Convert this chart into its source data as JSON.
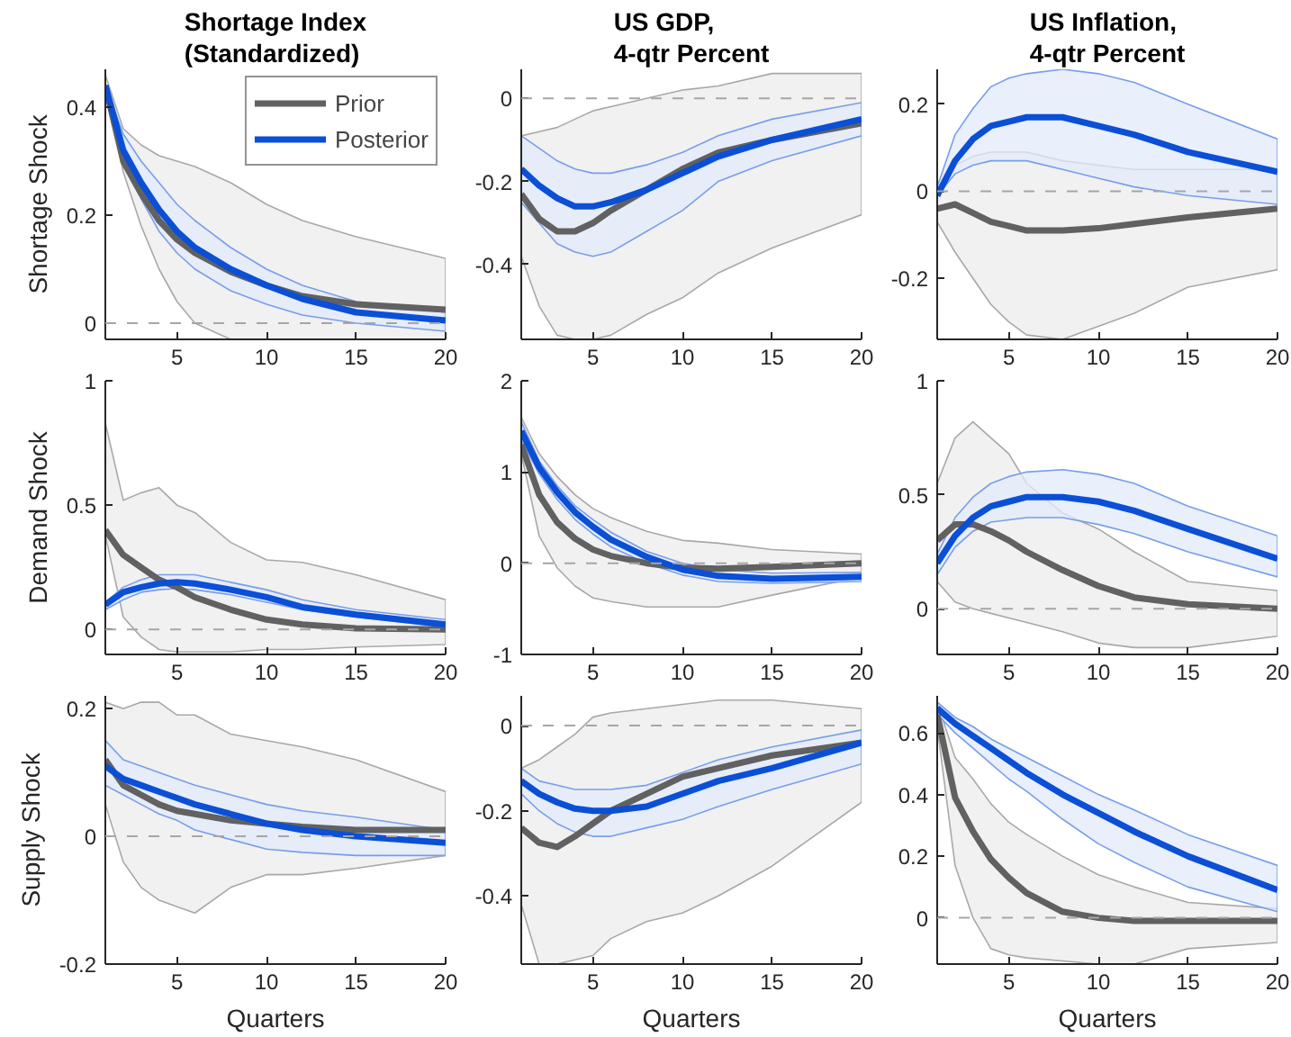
{
  "chart_data": [
    {
      "type": "line",
      "title": "Shortage Index\n(Standardized)",
      "ylabel": "Shortage Shock",
      "x": [
        1,
        2,
        3,
        4,
        5,
        6,
        8,
        10,
        12,
        15,
        20
      ],
      "xlim": [
        1,
        20
      ],
      "xticks": [
        5,
        10,
        15,
        20
      ],
      "ylim": [
        -0.03,
        0.47
      ],
      "yticks": [
        0,
        0.2,
        0.4
      ],
      "legend": "top right",
      "ref_lines": [
        {
          "axis": "y",
          "value": 0,
          "color": "#a6a6a6",
          "line_style": "dashed"
        }
      ],
      "series": [
        {
          "name": "Prior",
          "color": "#616161",
          "values": [
            0.44,
            0.3,
            0.24,
            0.19,
            0.155,
            0.13,
            0.095,
            0.07,
            0.05,
            0.035,
            0.025
          ],
          "lower": [
            0.44,
            0.28,
            0.18,
            0.1,
            0.04,
            0.0,
            -0.03,
            -0.03,
            -0.03,
            -0.03,
            -0.03
          ],
          "upper": [
            0.46,
            0.36,
            0.33,
            0.31,
            0.3,
            0.29,
            0.26,
            0.22,
            0.19,
            0.16,
            0.12
          ]
        },
        {
          "name": "Posterior",
          "color": "#0a4fd6",
          "values": [
            0.44,
            0.32,
            0.26,
            0.21,
            0.17,
            0.14,
            0.1,
            0.07,
            0.045,
            0.02,
            0.005
          ],
          "lower": [
            0.44,
            0.31,
            0.23,
            0.17,
            0.13,
            0.1,
            0.06,
            0.035,
            0.015,
            0.0,
            -0.015
          ],
          "upper": [
            0.44,
            0.35,
            0.3,
            0.26,
            0.22,
            0.19,
            0.14,
            0.1,
            0.07,
            0.04,
            0.02
          ]
        }
      ]
    },
    {
      "type": "line",
      "title": "US GDP,\n4-qtr Percent",
      "x": [
        1,
        2,
        3,
        4,
        5,
        6,
        8,
        10,
        12,
        15,
        20
      ],
      "xlim": [
        1,
        20
      ],
      "xticks": [
        5,
        10,
        15,
        20
      ],
      "ylim": [
        -0.58,
        0.07
      ],
      "yticks": [
        -0.4,
        -0.2,
        0
      ],
      "ref_lines": [
        {
          "axis": "y",
          "value": 0,
          "color": "#a6a6a6",
          "line_style": "dashed"
        }
      ],
      "series": [
        {
          "color": "#616161",
          "values": [
            -0.23,
            -0.29,
            -0.32,
            -0.32,
            -0.3,
            -0.27,
            -0.22,
            -0.17,
            -0.13,
            -0.1,
            -0.06
          ],
          "lower": [
            -0.38,
            -0.5,
            -0.57,
            -0.58,
            -0.58,
            -0.57,
            -0.52,
            -0.48,
            -0.42,
            -0.36,
            -0.28
          ],
          "upper": [
            -0.09,
            -0.08,
            -0.07,
            -0.05,
            -0.03,
            -0.02,
            0.0,
            0.02,
            0.03,
            0.06,
            0.06
          ]
        },
        {
          "color": "#0a4fd6",
          "values": [
            -0.17,
            -0.21,
            -0.24,
            -0.26,
            -0.26,
            -0.25,
            -0.22,
            -0.18,
            -0.14,
            -0.1,
            -0.05
          ],
          "lower": [
            -0.25,
            -0.3,
            -0.35,
            -0.37,
            -0.38,
            -0.37,
            -0.32,
            -0.27,
            -0.2,
            -0.15,
            -0.09
          ],
          "upper": [
            -0.09,
            -0.12,
            -0.15,
            -0.17,
            -0.18,
            -0.18,
            -0.16,
            -0.13,
            -0.09,
            -0.05,
            -0.01
          ]
        }
      ]
    },
    {
      "type": "line",
      "title": "US Inflation,\n4-qtr Percent",
      "x": [
        1,
        2,
        3,
        4,
        5,
        6,
        8,
        10,
        12,
        15,
        20
      ],
      "xlim": [
        1,
        20
      ],
      "xticks": [
        5,
        10,
        15,
        20
      ],
      "ylim": [
        -0.34,
        0.28
      ],
      "yticks": [
        -0.2,
        0,
        0.2
      ],
      "ref_lines": [
        {
          "axis": "y",
          "value": 0,
          "color": "#a6a6a6",
          "line_style": "dashed"
        }
      ],
      "series": [
        {
          "color": "#616161",
          "values": [
            -0.04,
            -0.03,
            -0.05,
            -0.07,
            -0.08,
            -0.09,
            -0.09,
            -0.085,
            -0.075,
            -0.06,
            -0.04
          ],
          "lower": [
            -0.07,
            -0.14,
            -0.2,
            -0.26,
            -0.3,
            -0.33,
            -0.34,
            -0.31,
            -0.28,
            -0.22,
            -0.18
          ],
          "upper": [
            0.0,
            0.06,
            0.08,
            0.09,
            0.09,
            0.09,
            0.07,
            0.06,
            0.05,
            0.05,
            0.05
          ]
        },
        {
          "color": "#0a4fd6",
          "values": [
            -0.01,
            0.07,
            0.12,
            0.15,
            0.16,
            0.17,
            0.17,
            0.15,
            0.13,
            0.09,
            0.045
          ],
          "lower": [
            -0.01,
            0.04,
            0.06,
            0.07,
            0.07,
            0.07,
            0.05,
            0.03,
            0.01,
            -0.01,
            -0.03
          ],
          "upper": [
            0.01,
            0.13,
            0.19,
            0.24,
            0.26,
            0.27,
            0.28,
            0.27,
            0.25,
            0.2,
            0.12
          ]
        }
      ]
    },
    {
      "type": "line",
      "ylabel": "Demand Shock",
      "x": [
        1,
        2,
        3,
        4,
        5,
        6,
        8,
        10,
        12,
        15,
        20
      ],
      "xlim": [
        1,
        20
      ],
      "xticks": [
        5,
        10,
        15,
        20
      ],
      "ylim": [
        -0.1,
        1
      ],
      "yticks": [
        0,
        0.5,
        1
      ],
      "ref_lines": [
        {
          "axis": "y",
          "value": 0,
          "color": "#a6a6a6",
          "line_style": "dashed"
        }
      ],
      "series": [
        {
          "color": "#616161",
          "values": [
            0.4,
            0.3,
            0.25,
            0.2,
            0.17,
            0.13,
            0.08,
            0.04,
            0.02,
            0.005,
            0
          ],
          "lower": [
            0.38,
            0.05,
            -0.03,
            -0.08,
            -0.09,
            -0.09,
            -0.09,
            -0.08,
            -0.08,
            -0.07,
            -0.06
          ],
          "upper": [
            0.83,
            0.52,
            0.55,
            0.57,
            0.5,
            0.47,
            0.35,
            0.28,
            0.27,
            0.22,
            0.12
          ]
        },
        {
          "color": "#0a4fd6",
          "values": [
            0.1,
            0.15,
            0.17,
            0.185,
            0.19,
            0.185,
            0.16,
            0.13,
            0.09,
            0.06,
            0.02
          ],
          "lower": [
            0.08,
            0.12,
            0.15,
            0.16,
            0.165,
            0.16,
            0.14,
            0.11,
            0.08,
            0.05,
            0.01
          ],
          "upper": [
            0.11,
            0.17,
            0.2,
            0.22,
            0.22,
            0.22,
            0.19,
            0.16,
            0.12,
            0.08,
            0.04
          ]
        }
      ]
    },
    {
      "type": "line",
      "x": [
        1,
        2,
        3,
        4,
        5,
        6,
        8,
        10,
        12,
        15,
        20
      ],
      "xlim": [
        1,
        20
      ],
      "xticks": [
        5,
        10,
        15,
        20
      ],
      "ylim": [
        -1,
        2
      ],
      "yticks": [
        -1,
        0,
        1,
        2
      ],
      "ref_lines": [
        {
          "axis": "y",
          "value": 0,
          "color": "#a6a6a6",
          "line_style": "dashed"
        }
      ],
      "series": [
        {
          "color": "#616161",
          "values": [
            1.3,
            0.75,
            0.45,
            0.27,
            0.15,
            0.08,
            0,
            -0.05,
            -0.06,
            -0.04,
            0
          ],
          "lower": [
            1.2,
            0.3,
            -0.05,
            -0.25,
            -0.38,
            -0.42,
            -0.48,
            -0.48,
            -0.48,
            -0.35,
            -0.15
          ],
          "upper": [
            1.6,
            1.2,
            0.95,
            0.75,
            0.6,
            0.5,
            0.35,
            0.25,
            0.22,
            0.15,
            0.1
          ]
        },
        {
          "color": "#0a4fd6",
          "values": [
            1.45,
            1.05,
            0.78,
            0.56,
            0.4,
            0.26,
            0.07,
            -0.07,
            -0.14,
            -0.17,
            -0.15
          ],
          "lower": [
            1.35,
            0.98,
            0.7,
            0.48,
            0.32,
            0.18,
            0,
            -0.13,
            -0.2,
            -0.22,
            -0.2
          ],
          "upper": [
            1.55,
            1.12,
            0.85,
            0.63,
            0.48,
            0.34,
            0.13,
            0,
            -0.07,
            -0.11,
            -0.1
          ]
        }
      ]
    },
    {
      "type": "line",
      "x": [
        1,
        2,
        3,
        4,
        5,
        6,
        8,
        10,
        12,
        15,
        20
      ],
      "xlim": [
        1,
        20
      ],
      "xticks": [
        5,
        10,
        15,
        20
      ],
      "ylim": [
        -0.2,
        1
      ],
      "yticks": [
        0,
        0.5,
        1
      ],
      "ref_lines": [
        {
          "axis": "y",
          "value": 0,
          "color": "#a6a6a6",
          "line_style": "dashed"
        }
      ],
      "series": [
        {
          "color": "#616161",
          "values": [
            0.3,
            0.37,
            0.37,
            0.34,
            0.3,
            0.25,
            0.17,
            0.1,
            0.05,
            0.02,
            0
          ],
          "lower": [
            0.12,
            0.03,
            0,
            -0.02,
            -0.04,
            -0.06,
            -0.1,
            -0.15,
            -0.17,
            -0.17,
            -0.12
          ],
          "upper": [
            0.55,
            0.75,
            0.82,
            0.75,
            0.68,
            0.55,
            0.42,
            0.35,
            0.25,
            0.12,
            0.08
          ]
        },
        {
          "color": "#0a4fd6",
          "values": [
            0.2,
            0.32,
            0.4,
            0.45,
            0.47,
            0.49,
            0.49,
            0.47,
            0.43,
            0.35,
            0.22
          ],
          "lower": [
            0.15,
            0.27,
            0.34,
            0.38,
            0.39,
            0.4,
            0.4,
            0.37,
            0.33,
            0.25,
            0.14
          ],
          "upper": [
            0.24,
            0.4,
            0.49,
            0.55,
            0.58,
            0.6,
            0.61,
            0.59,
            0.55,
            0.45,
            0.32
          ]
        }
      ]
    },
    {
      "type": "line",
      "ylabel": "Supply Shock",
      "xlabel": "Quarters",
      "x": [
        1,
        2,
        3,
        4,
        5,
        6,
        8,
        10,
        12,
        15,
        20
      ],
      "xlim": [
        1,
        20
      ],
      "xticks": [
        5,
        10,
        15,
        20
      ],
      "ylim": [
        -0.2,
        0.22
      ],
      "yticks": [
        -0.2,
        0,
        0.2
      ],
      "ref_lines": [
        {
          "axis": "y",
          "value": 0,
          "color": "#a6a6a6",
          "line_style": "dashed"
        }
      ],
      "series": [
        {
          "color": "#616161",
          "values": [
            0.12,
            0.08,
            0.065,
            0.05,
            0.04,
            0.035,
            0.025,
            0.02,
            0.015,
            0.01,
            0.01
          ],
          "lower": [
            0.05,
            -0.04,
            -0.08,
            -0.1,
            -0.11,
            -0.12,
            -0.08,
            -0.06,
            -0.06,
            -0.05,
            -0.03
          ],
          "upper": [
            0.21,
            0.2,
            0.21,
            0.21,
            0.19,
            0.19,
            0.16,
            0.15,
            0.14,
            0.12,
            0.07
          ]
        },
        {
          "color": "#0a4fd6",
          "values": [
            0.11,
            0.09,
            0.08,
            0.07,
            0.06,
            0.05,
            0.035,
            0.02,
            0.01,
            0,
            -0.01
          ],
          "lower": [
            0.08,
            0.065,
            0.05,
            0.035,
            0.025,
            0.01,
            -0.005,
            -0.02,
            -0.025,
            -0.03,
            -0.03
          ],
          "upper": [
            0.15,
            0.12,
            0.11,
            0.1,
            0.09,
            0.08,
            0.065,
            0.05,
            0.04,
            0.03,
            0.01
          ]
        }
      ]
    },
    {
      "type": "line",
      "xlabel": "Quarters",
      "x": [
        1,
        2,
        3,
        4,
        5,
        6,
        8,
        10,
        12,
        15,
        20
      ],
      "xlim": [
        1,
        20
      ],
      "xticks": [
        5,
        10,
        15,
        20
      ],
      "ylim": [
        -0.56,
        0.07
      ],
      "yticks": [
        -0.4,
        -0.2,
        0
      ],
      "ref_lines": [
        {
          "axis": "y",
          "value": 0,
          "color": "#a6a6a6",
          "line_style": "dashed"
        }
      ],
      "series": [
        {
          "color": "#616161",
          "values": [
            -0.24,
            -0.275,
            -0.285,
            -0.26,
            -0.23,
            -0.2,
            -0.16,
            -0.12,
            -0.1,
            -0.07,
            -0.04
          ],
          "lower": [
            -0.42,
            -0.56,
            -0.56,
            -0.55,
            -0.54,
            -0.5,
            -0.46,
            -0.44,
            -0.4,
            -0.33,
            -0.18
          ],
          "upper": [
            -0.1,
            -0.08,
            -0.05,
            -0.02,
            0.02,
            0.03,
            0.04,
            0.05,
            0.06,
            0.06,
            0.04
          ]
        },
        {
          "color": "#0a4fd6",
          "values": [
            -0.13,
            -0.16,
            -0.18,
            -0.195,
            -0.2,
            -0.2,
            -0.19,
            -0.16,
            -0.13,
            -0.1,
            -0.04
          ],
          "lower": [
            -0.16,
            -0.2,
            -0.23,
            -0.25,
            -0.26,
            -0.26,
            -0.24,
            -0.22,
            -0.19,
            -0.15,
            -0.09
          ],
          "upper": [
            -0.1,
            -0.13,
            -0.14,
            -0.15,
            -0.15,
            -0.15,
            -0.14,
            -0.11,
            -0.08,
            -0.05,
            -0.01
          ]
        }
      ]
    },
    {
      "type": "line",
      "xlabel": "Quarters",
      "x": [
        1,
        2,
        3,
        4,
        5,
        6,
        8,
        10,
        12,
        15,
        20
      ],
      "xlim": [
        1,
        20
      ],
      "xticks": [
        5,
        10,
        15,
        20
      ],
      "ylim": [
        -0.15,
        0.72
      ],
      "yticks": [
        0,
        0.2,
        0.4,
        0.6
      ],
      "ref_lines": [
        {
          "axis": "y",
          "value": 0,
          "color": "#a6a6a6",
          "line_style": "dashed"
        }
      ],
      "series": [
        {
          "color": "#616161",
          "values": [
            0.66,
            0.39,
            0.28,
            0.19,
            0.13,
            0.08,
            0.02,
            0,
            -0.01,
            -0.01,
            -0.01
          ],
          "lower": [
            0.62,
            0.17,
            0,
            -0.1,
            -0.12,
            -0.13,
            -0.14,
            -0.15,
            -0.15,
            -0.1,
            -0.08
          ],
          "upper": [
            0.7,
            0.52,
            0.45,
            0.37,
            0.31,
            0.27,
            0.2,
            0.14,
            0.1,
            0.05,
            0.03
          ]
        },
        {
          "color": "#0a4fd6",
          "values": [
            0.68,
            0.63,
            0.59,
            0.55,
            0.51,
            0.47,
            0.4,
            0.34,
            0.28,
            0.2,
            0.09
          ],
          "lower": [
            0.66,
            0.6,
            0.55,
            0.5,
            0.45,
            0.41,
            0.32,
            0.24,
            0.18,
            0.1,
            0.02
          ],
          "upper": [
            0.7,
            0.65,
            0.62,
            0.58,
            0.55,
            0.52,
            0.46,
            0.4,
            0.35,
            0.27,
            0.17
          ]
        }
      ]
    }
  ]
}
